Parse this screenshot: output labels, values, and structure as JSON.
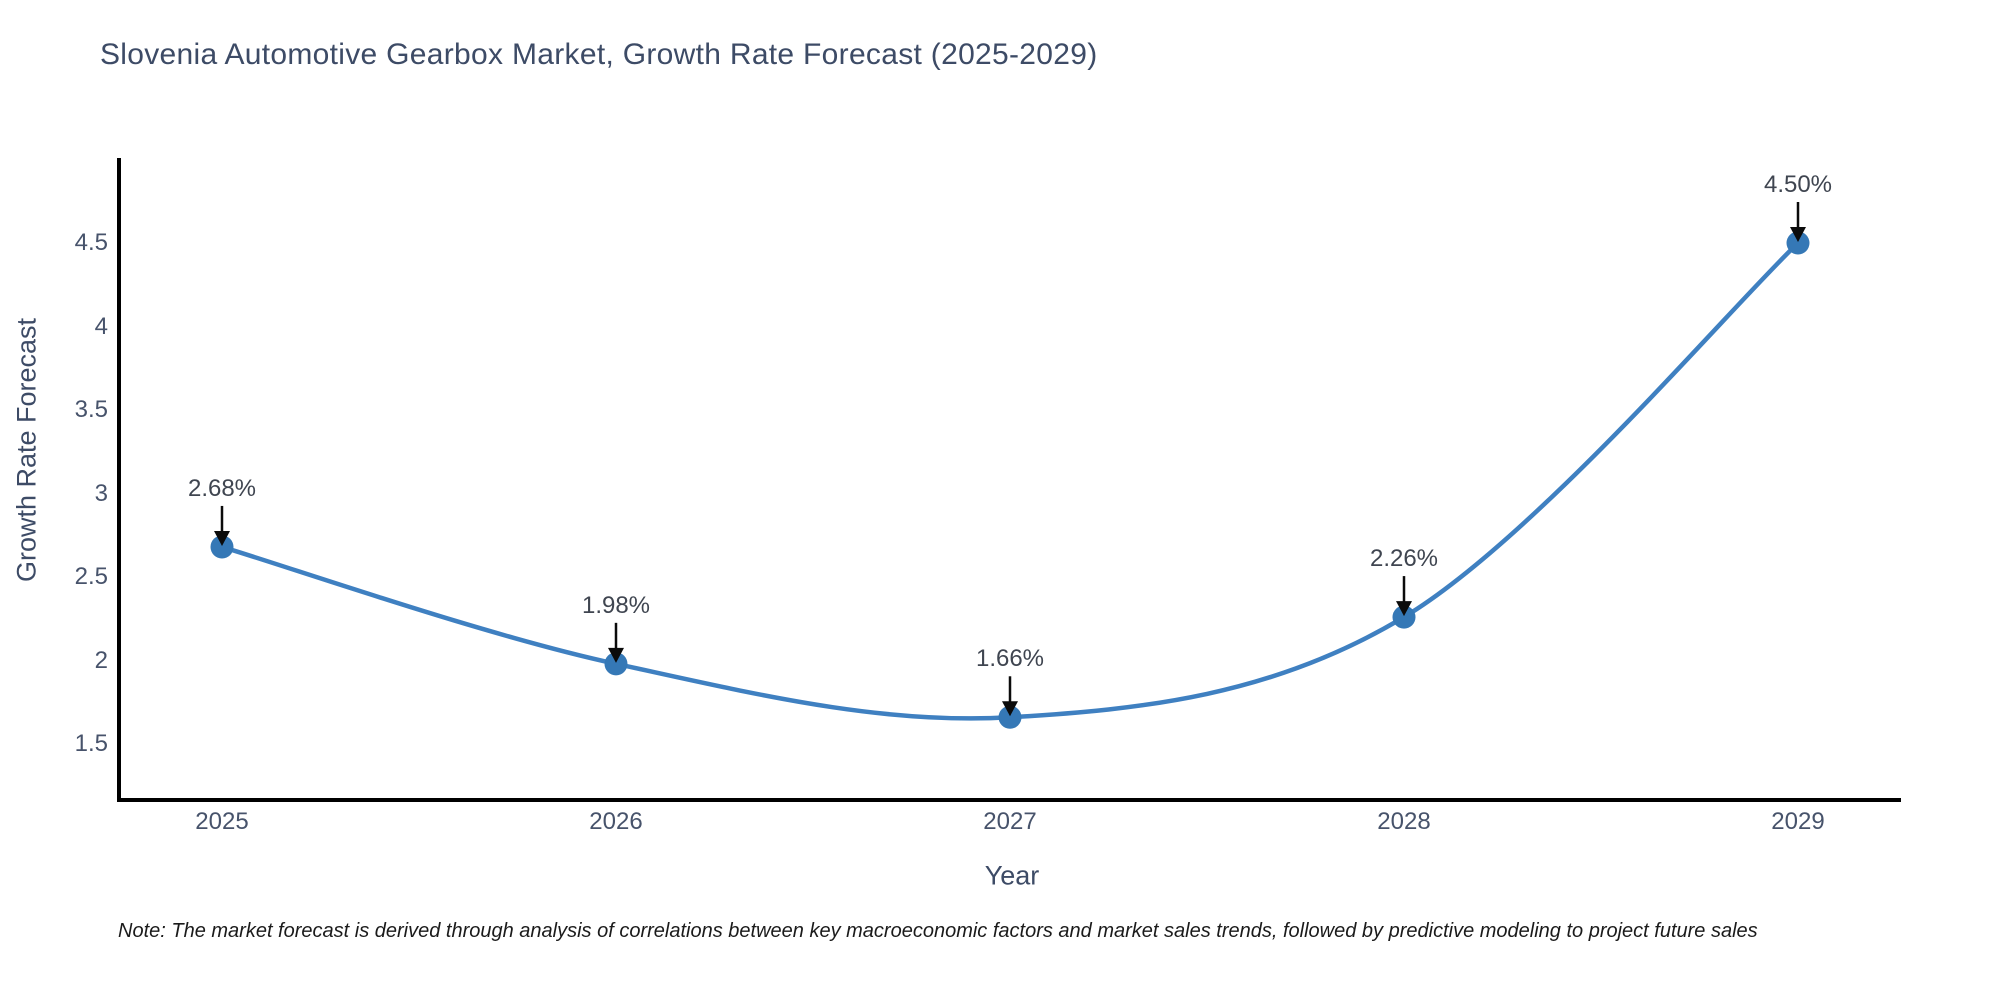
{
  "title": "Slovenia Automotive Gearbox Market, Growth Rate Forecast (2025-2029)",
  "note": "Note: The market forecast is derived through analysis of correlations between key macroeconomic factors and market sales trends, followed by predictive modeling to project future sales",
  "chart_data": {
    "type": "line",
    "title": "Slovenia Automotive Gearbox Market, Growth Rate Forecast (2025-2029)",
    "xlabel": "Year",
    "ylabel": "Growth Rate Forecast",
    "categories": [
      "2025",
      "2026",
      "2027",
      "2028",
      "2029"
    ],
    "values": [
      2.68,
      1.98,
      1.66,
      2.26,
      4.5
    ],
    "point_labels": [
      "2.68%",
      "1.98%",
      "1.66%",
      "2.26%",
      "4.50%"
    ],
    "yticks": [
      "1.5",
      "2",
      "2.5",
      "3",
      "3.5",
      "4",
      "4.5"
    ],
    "ylim": [
      1.15,
      5.0
    ],
    "grid": false,
    "legend_position": "none",
    "line_color": "#3f80c1",
    "marker_color": "#3578b6",
    "arrow_color": "#0b0b0b",
    "axis_color": "#000000"
  }
}
